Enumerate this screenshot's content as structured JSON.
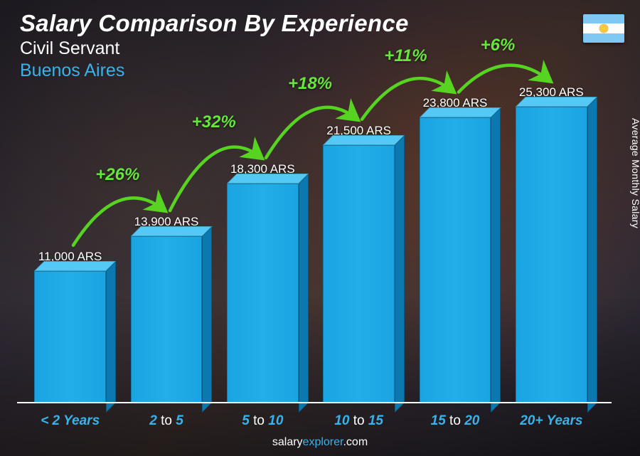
{
  "header": {
    "title": "Salary Comparison By Experience",
    "subtitle": "Civil Servant",
    "location": "Buenos Aires"
  },
  "flag": {
    "stripe_top": "#7ec8f3",
    "stripe_mid": "#ffffff",
    "stripe_bot": "#7ec8f3",
    "sun": "#f8c93a"
  },
  "y_axis_label": "Average Monthly Salary",
  "chart": {
    "type": "bar",
    "currency": "ARS",
    "ylim_max": 26500,
    "bar_fill": "#1fa9e6",
    "bar_top": "#54c9f5",
    "bar_side": "#0b79b0",
    "arc_color": "#57d321",
    "pct_color": "#66e63b",
    "title_color": "#ffffff",
    "location_color": "#38b3ea",
    "category_accent": "#38b3ea",
    "bars": [
      {
        "cat_pre": "< 2",
        "cat_post": "Years",
        "value": 11000,
        "label": "11,000 ARS"
      },
      {
        "cat_pre": "2",
        "cat_mid": "to",
        "cat_post": "5",
        "value": 13900,
        "label": "13,900 ARS"
      },
      {
        "cat_pre": "5",
        "cat_mid": "to",
        "cat_post": "10",
        "value": 18300,
        "label": "18,300 ARS"
      },
      {
        "cat_pre": "10",
        "cat_mid": "to",
        "cat_post": "15",
        "value": 21500,
        "label": "21,500 ARS"
      },
      {
        "cat_pre": "15",
        "cat_mid": "to",
        "cat_post": "20",
        "value": 23800,
        "label": "23,800 ARS"
      },
      {
        "cat_pre": "20+",
        "cat_post": "Years",
        "value": 25300,
        "label": "25,300 ARS"
      }
    ],
    "increments": [
      {
        "pct": "+26%"
      },
      {
        "pct": "+32%"
      },
      {
        "pct": "+18%"
      },
      {
        "pct": "+11%"
      },
      {
        "pct": "+6%"
      }
    ]
  },
  "footer": {
    "pre": "salary",
    "accent": "explorer",
    "post": ".com"
  }
}
